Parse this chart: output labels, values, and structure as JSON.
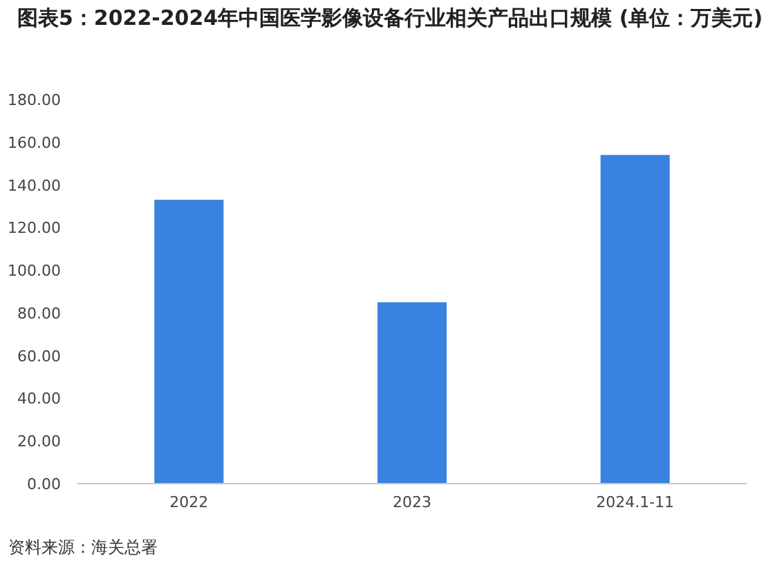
{
  "chart_data": {
    "type": "bar",
    "title": "图表5：2022-2024年中国医学影像设备行业相关产品出口规模 (单位：万美元)",
    "categories": [
      "2022",
      "2023",
      "2024.1-11"
    ],
    "values": [
      133,
      85,
      154
    ],
    "color": "#3a82e0",
    "ylim": [
      0,
      180
    ],
    "yticks": [
      {
        "value": 0,
        "label": "0.00"
      },
      {
        "value": 20,
        "label": "20.00"
      },
      {
        "value": 40,
        "label": "40.00"
      },
      {
        "value": 60,
        "label": "60.00"
      },
      {
        "value": 80,
        "label": "80.00"
      },
      {
        "value": 100,
        "label": "100.00"
      },
      {
        "value": 120,
        "label": "120.00"
      },
      {
        "value": 140,
        "label": "140.00"
      },
      {
        "value": 160,
        "label": "160.00"
      },
      {
        "value": 180,
        "label": "180.00"
      }
    ],
    "grid": false,
    "annotations": [
      "资料来源：海关总署"
    ]
  }
}
